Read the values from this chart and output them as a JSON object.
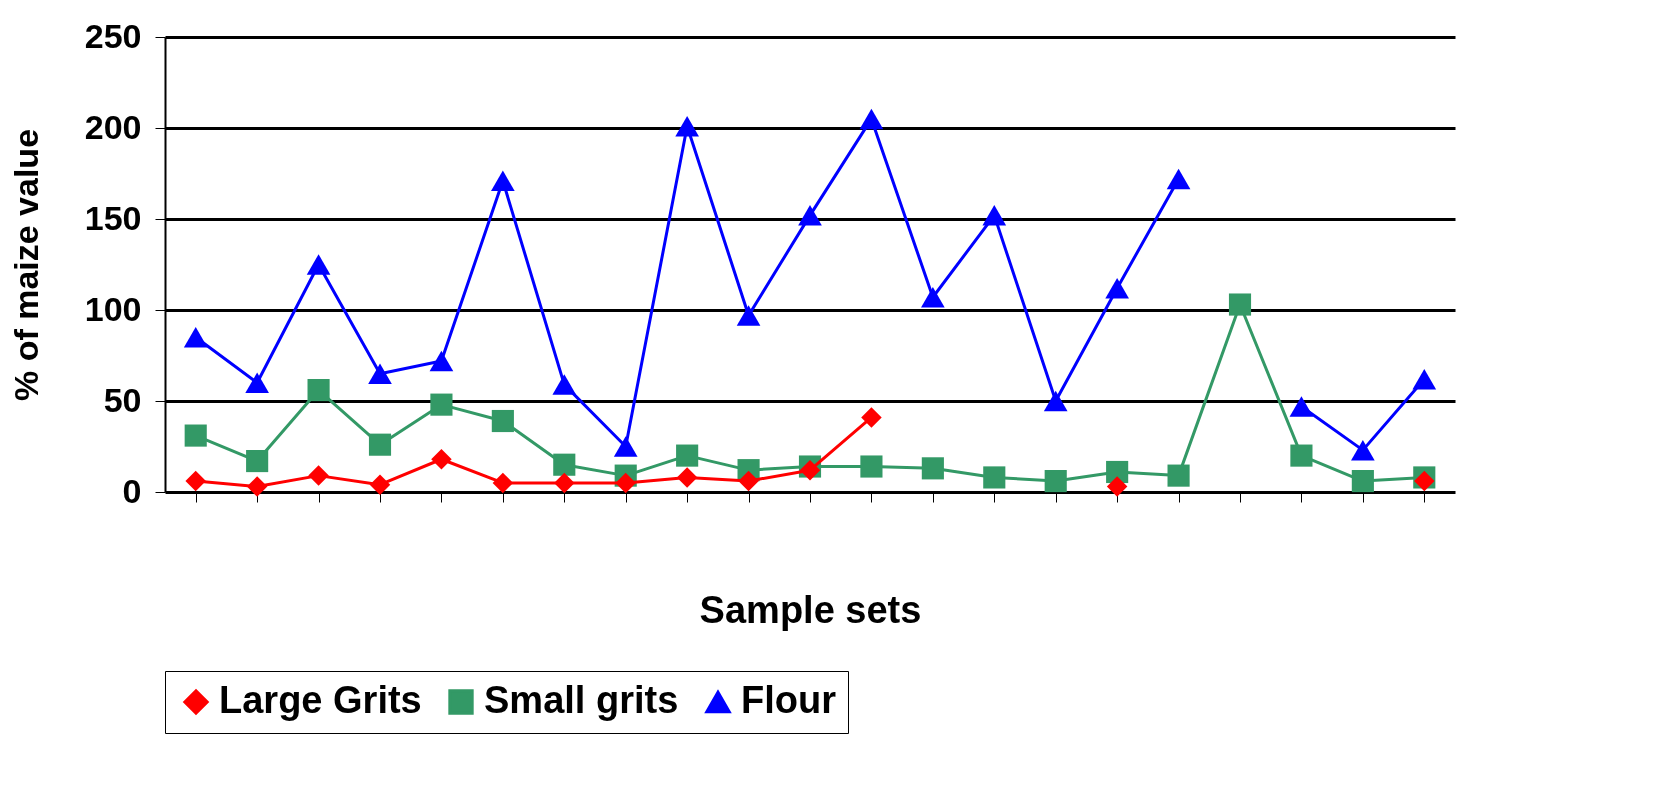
{
  "chart_data": {
    "type": "line",
    "xlabel": "Sample sets",
    "ylabel": "% of maize value",
    "categories": [
      null,
      null,
      null,
      null,
      null,
      null,
      null,
      null,
      null,
      null,
      null,
      null,
      null,
      null,
      null,
      null,
      null,
      null,
      null,
      null,
      null
    ],
    "series": [
      {
        "name": "Large Grits",
        "color": "#ff0000",
        "marker": "diamond",
        "values": [
          6,
          3,
          9,
          4,
          18,
          5,
          5,
          5,
          8,
          6,
          12,
          41,
          null,
          null,
          null,
          3,
          null,
          null,
          null,
          null,
          6
        ]
      },
      {
        "name": "Small grits",
        "color": "#339966",
        "marker": "square",
        "values": [
          31,
          17,
          56,
          26,
          48,
          39,
          15,
          9,
          20,
          12,
          14,
          14,
          13,
          8,
          6,
          11,
          9,
          103,
          20,
          6,
          8
        ]
      },
      {
        "name": "Flour",
        "color": "#0000ff",
        "marker": "triangle",
        "values": [
          85,
          60,
          125,
          65,
          72,
          171,
          59,
          25,
          201,
          97,
          152,
          205,
          107,
          152,
          50,
          112,
          172,
          null,
          47,
          23,
          62
        ]
      }
    ],
    "ylim": [
      0,
      250
    ],
    "yticks": [
      0,
      50,
      100,
      150,
      200,
      250
    ],
    "grid": "y",
    "legend": "bottom"
  }
}
